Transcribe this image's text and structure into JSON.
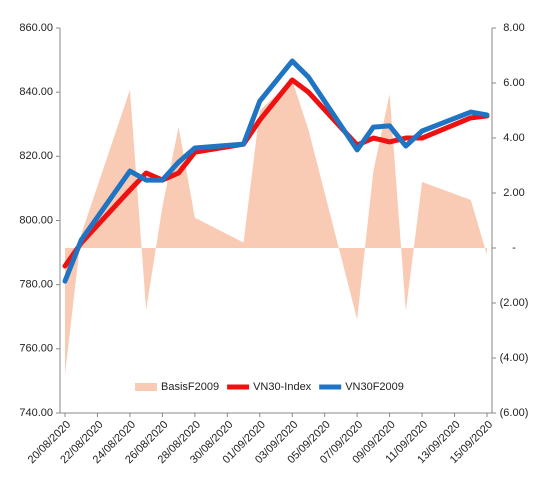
{
  "chart_data": {
    "type": "combo",
    "x": [
      "20/08/2020",
      "21/08/2020",
      "24/08/2020",
      "25/08/2020",
      "26/08/2020",
      "27/08/2020",
      "28/08/2020",
      "31/08/2020",
      "01/09/2020",
      "03/09/2020",
      "04/09/2020",
      "07/09/2020",
      "08/09/2020",
      "09/09/2020",
      "10/09/2020",
      "11/09/2020",
      "14/09/2020",
      "15/09/2020"
    ],
    "xlim": [
      "20/08/2020",
      "15/09/2020"
    ],
    "xticks": [
      "20/08/2020",
      "22/08/2020",
      "24/08/2020",
      "26/08/2020",
      "28/08/2020",
      "30/08/2020",
      "01/09/2020",
      "03/09/2020",
      "05/09/2020",
      "07/09/2020",
      "09/09/2020",
      "11/09/2020",
      "13/09/2020",
      "15/09/2020"
    ],
    "ylim": [
      740,
      860
    ],
    "yticks": [
      {
        "value": 740,
        "label": "740.00"
      },
      {
        "value": 760,
        "label": "760.00"
      },
      {
        "value": 780,
        "label": "780.00"
      },
      {
        "value": 800,
        "label": "800.00"
      },
      {
        "value": 820,
        "label": "820.00"
      },
      {
        "value": 840,
        "label": "840.00"
      },
      {
        "value": 860,
        "label": "860.00"
      }
    ],
    "y2lim": [
      -6,
      8
    ],
    "y2ticks": [
      {
        "value": -6,
        "label": "(6.00)"
      },
      {
        "value": -4,
        "label": "(4.00)"
      },
      {
        "value": -2,
        "label": "(2.00)"
      },
      {
        "value": 0,
        "label": "-"
      },
      {
        "value": 2,
        "label": "2.00"
      },
      {
        "value": 4,
        "label": "4.00"
      },
      {
        "value": 6,
        "label": "6.00"
      },
      {
        "value": 8,
        "label": "8.00"
      }
    ],
    "legend": "bottom",
    "series": [
      {
        "name": "BasisF2009",
        "kind": "area",
        "axis": "y2",
        "color": "#f9cbb4",
        "values": [
          -4.6,
          0.5,
          5.75,
          -2.25,
          1.5,
          4.4,
          1.1,
          0.2,
          5.0,
          6.1,
          4.3,
          -2.6,
          2.8,
          5.6,
          -2.3,
          2.4,
          1.75,
          -0.25
        ]
      },
      {
        "name": "VN30-Index",
        "kind": "line",
        "color": "#ee1111",
        "values": [
          785.8,
          793.0,
          809.5,
          814.8,
          812.6,
          814.8,
          821.3,
          823.8,
          831.3,
          843.8,
          840.0,
          823.5,
          825.7,
          824.5,
          825.7,
          825.7,
          832.0,
          832.6
        ]
      },
      {
        "name": "VN30F2009",
        "kind": "line",
        "color": "#1f74c4",
        "values": [
          781.1,
          793.9,
          815.4,
          812.6,
          812.6,
          818.2,
          822.6,
          823.8,
          837.2,
          849.7,
          844.7,
          822.0,
          829.1,
          829.5,
          823.2,
          827.9,
          833.8,
          832.9
        ]
      }
    ]
  }
}
